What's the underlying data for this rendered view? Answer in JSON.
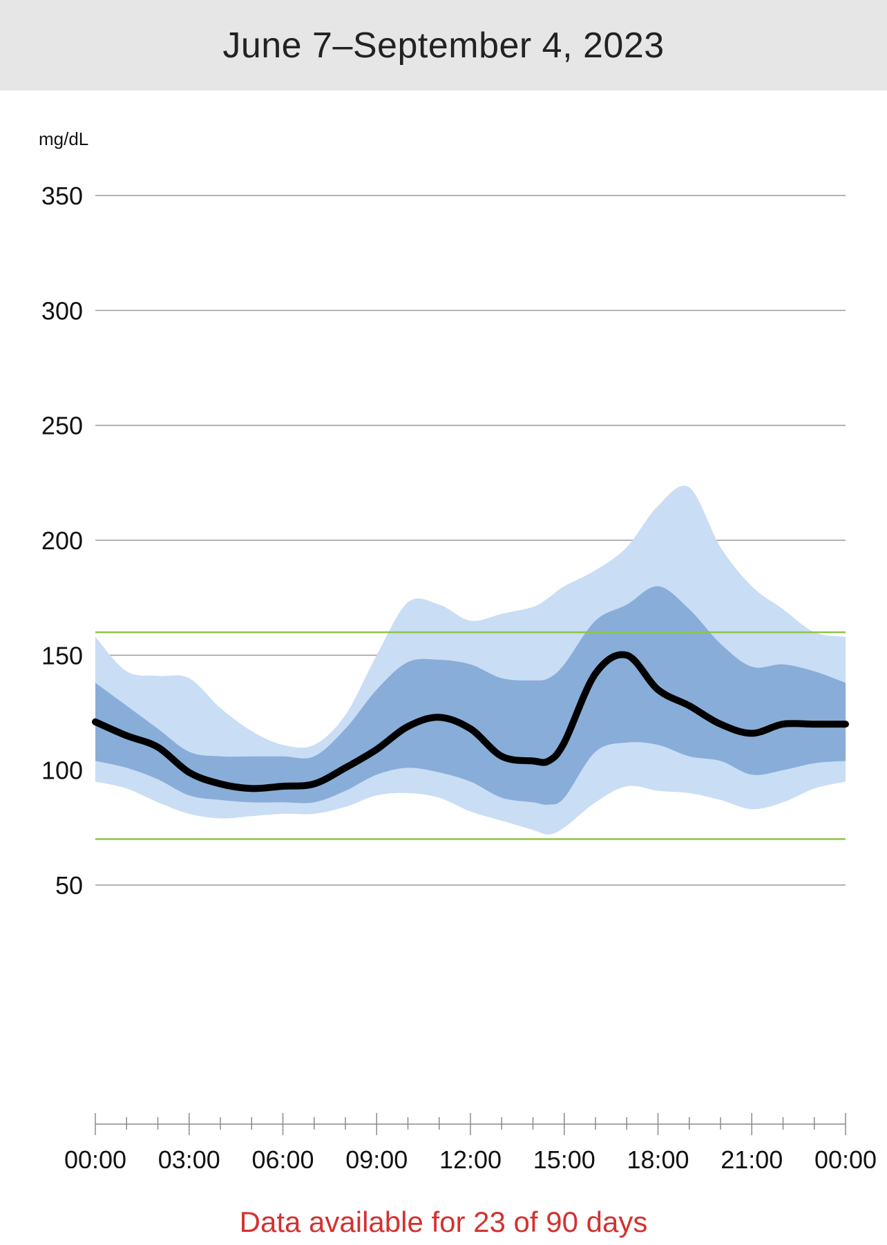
{
  "header": {
    "title": "June 7–September 4, 2023"
  },
  "footer": {
    "note": "Data available for 23 of 90 days"
  },
  "colors": {
    "outer_band": "#c9ddf5",
    "inner_band": "#88add8",
    "median": "#000000",
    "target_lines": "#8cc63f",
    "grid": "#9a9a9a",
    "note": "#d3322f"
  },
  "chart_data": {
    "type": "area",
    "ylabel": "mg/dL",
    "ylim": [
      0,
      350
    ],
    "yticks": [
      50,
      100,
      150,
      200,
      250,
      300,
      350
    ],
    "xlim": [
      0,
      24
    ],
    "xtick_labels": [
      "00:00",
      "03:00",
      "06:00",
      "09:00",
      "12:00",
      "15:00",
      "18:00",
      "21:00",
      "00:00"
    ],
    "target_range": [
      70,
      160
    ],
    "x": [
      0,
      1,
      2,
      3,
      4,
      5,
      6,
      7,
      8,
      9,
      10,
      11,
      12,
      13,
      14,
      14.5,
      15,
      16,
      17,
      18,
      19,
      20,
      21,
      22,
      23,
      24
    ],
    "series": [
      {
        "name": "",
        "role": "p95",
        "values": [
          158,
          143,
          141,
          140,
          127,
          117,
          111,
          111,
          124,
          150,
          173,
          172,
          165,
          168,
          171,
          175,
          180,
          187,
          197,
          215,
          223,
          197,
          180,
          170,
          160,
          158
        ]
      },
      {
        "name": "",
        "role": "p75",
        "values": [
          138,
          128,
          118,
          108,
          106,
          106,
          106,
          106,
          118,
          135,
          147,
          148,
          146,
          140,
          139,
          140,
          146,
          165,
          172,
          180,
          170,
          155,
          145,
          146,
          143,
          138
        ]
      },
      {
        "name": "",
        "role": "median",
        "values": [
          121,
          115,
          110,
          99,
          94,
          92,
          93,
          94,
          101,
          109,
          119,
          123,
          118,
          106,
          104,
          104,
          112,
          142,
          150,
          135,
          128,
          120,
          116,
          120,
          120,
          120
        ]
      },
      {
        "name": "",
        "role": "p25",
        "values": [
          104,
          101,
          96,
          89,
          87,
          86,
          86,
          86,
          91,
          98,
          101,
          99,
          95,
          88,
          86,
          85,
          88,
          108,
          112,
          111,
          106,
          104,
          98,
          100,
          103,
          104
        ]
      },
      {
        "name": "",
        "role": "p5",
        "values": [
          95,
          92,
          86,
          81,
          79,
          80,
          81,
          81,
          84,
          89,
          90,
          88,
          82,
          78,
          74,
          72,
          75,
          86,
          93,
          91,
          90,
          87,
          83,
          86,
          92,
          95
        ]
      }
    ]
  }
}
